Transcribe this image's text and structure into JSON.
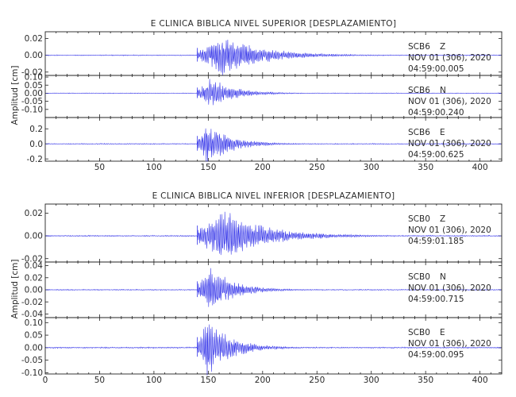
{
  "colors": {
    "trace": "#2d2de8",
    "axis": "#222222",
    "background": "#ffffff"
  },
  "chart_data": [
    {
      "type": "line",
      "title": "E CLINICA BIBLICA NIVEL SUPERIOR [DESPLAZAMIENTO]",
      "ylabel": "Amplitud [cm]",
      "xlim": [
        0,
        420
      ],
      "x_ticks": [
        "50",
        "100",
        "150",
        "200",
        "250",
        "300",
        "350",
        "400"
      ],
      "grid": false,
      "panels": [
        {
          "ylim": [
            -0.024,
            0.028
          ],
          "y_ticks": [
            "0.02",
            "0.00",
            "-0.02"
          ],
          "station": "SCB6",
          "component": "Z",
          "date": "NOV 01 (306), 2020",
          "time": "04:59:00.005",
          "onset": 140,
          "peak_time": 162,
          "peak_amplitude": 0.025
        },
        {
          "ylim": [
            -0.15,
            0.11
          ],
          "y_ticks": [
            "0.10",
            "0.05",
            "0.00",
            "-0.05",
            "-0.10"
          ],
          "station": "SCB6",
          "component": "N",
          "date": "NOV 01 (306), 2020",
          "time": "04:59:00.240",
          "onset": 140,
          "peak_time": 152,
          "peak_amplitude": 0.1
        },
        {
          "ylim": [
            -0.23,
            0.35
          ],
          "y_ticks": [
            "0.2",
            "0.0",
            "-0.2"
          ],
          "station": "SCB6",
          "component": "E",
          "date": "NOV 01 (306), 2020",
          "time": "04:59:00.625",
          "onset": 140,
          "peak_time": 149,
          "peak_amplitude": 0.3
        }
      ]
    },
    {
      "type": "line",
      "title": "E CLINICA BIBLICA NIVEL INFERIOR [DESPLAZAMIENTO]",
      "ylabel": "Amplitud [cm]",
      "xlim": [
        0,
        420
      ],
      "x_ticks": [
        "0",
        "50",
        "100",
        "150",
        "200",
        "250",
        "300",
        "350",
        "400"
      ],
      "grid": false,
      "panels": [
        {
          "ylim": [
            -0.023,
            0.028
          ],
          "y_ticks": [
            "0.02",
            "0.00",
            "-0.02"
          ],
          "station": "SCB0",
          "component": "Z",
          "date": "NOV 01 (306), 2020",
          "time": "04:59:01.185",
          "onset": 140,
          "peak_time": 162,
          "peak_amplitude": 0.026
        },
        {
          "ylim": [
            -0.046,
            0.046
          ],
          "y_ticks": [
            "0.04",
            "0.02",
            "0.00",
            "-0.02",
            "-0.04"
          ],
          "station": "SCB0",
          "component": "N",
          "date": "NOV 01 (306), 2020",
          "time": "04:59:00.715",
          "onset": 140,
          "peak_time": 152,
          "peak_amplitude": 0.04
        },
        {
          "ylim": [
            -0.105,
            0.12
          ],
          "y_ticks": [
            "0.10",
            "0.05",
            "0.00",
            "-0.05",
            "-0.10"
          ],
          "station": "SCB0",
          "component": "E",
          "date": "NOV 01 (306), 2020",
          "time": "04:59:00.095",
          "onset": 140,
          "peak_time": 149,
          "peak_amplitude": 0.12
        }
      ]
    }
  ]
}
